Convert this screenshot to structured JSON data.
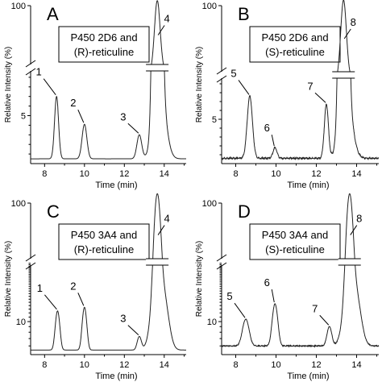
{
  "chart_data": [
    {
      "panel": "A",
      "type": "line",
      "legend": [
        "P450 2D6 and",
        "(R)-reticuline"
      ],
      "legend_italic": "R",
      "xlabel": "Time (min)",
      "ylabel": "Relative Intensity (%)",
      "scale": "linear",
      "xlim": [
        7.3,
        15.1
      ],
      "xticks": [
        8,
        10,
        12,
        14
      ],
      "lower_ylim": [
        0,
        10
      ],
      "lower_yticks": [
        5
      ],
      "upper_ylim": [
        10,
        100
      ],
      "upper_yticks": [
        100
      ],
      "baseline": 0.5,
      "peaks": [
        {
          "label": "1",
          "x": 8.6,
          "y": 7.0,
          "width": 0.1
        },
        {
          "label": "2",
          "x": 10.0,
          "y": 4.1,
          "width": 0.12
        },
        {
          "label": "3",
          "x": 12.75,
          "y": 3.0,
          "width": 0.12
        },
        {
          "label": "4",
          "x": 13.65,
          "y": 100,
          "width": 0.14,
          "shoulder": true
        }
      ],
      "noise": 0.0
    },
    {
      "panel": "B",
      "type": "line",
      "legend": [
        "P450 2D6 and",
        "(S)-reticuline"
      ],
      "legend_italic": "S",
      "xlabel": "Time (min)",
      "ylabel": "Relative Intensity (%)",
      "scale": "linear",
      "xlim": [
        7.3,
        15.1
      ],
      "xticks": [
        8,
        10,
        12,
        14
      ],
      "lower_ylim": [
        0,
        10
      ],
      "lower_yticks": [
        5
      ],
      "upper_ylim": [
        10,
        100
      ],
      "upper_yticks": [
        100
      ],
      "baseline": 0.6,
      "peaks": [
        {
          "label": "5",
          "x": 8.7,
          "y": 7.6,
          "width": 0.13
        },
        {
          "label": "6",
          "x": 9.95,
          "y": 1.8,
          "width": 0.1
        },
        {
          "label": "7",
          "x": 12.5,
          "y": 6.7,
          "width": 0.1
        },
        {
          "label": "8",
          "x": 13.35,
          "y": 100,
          "width": 0.14,
          "shoulder": true
        }
      ],
      "noise": 0.12
    },
    {
      "panel": "C",
      "type": "line",
      "legend": [
        "P450 3A4 and",
        "(R)-reticuline"
      ],
      "legend_italic": "R",
      "xlabel": "Time (min)",
      "ylabel": "Relative Intensity (%)",
      "scale": "log",
      "xlim": [
        7.3,
        15.1
      ],
      "xticks": [
        8,
        10,
        12,
        14
      ],
      "lower_ylim": [
        5,
        35
      ],
      "lower_yticks": [
        10
      ],
      "upper_ylim": [
        35,
        100
      ],
      "upper_yticks": [
        100
      ],
      "baseline": 5.5,
      "peaks": [
        {
          "label": "1",
          "x": 8.65,
          "y": 12.5,
          "width": 0.1
        },
        {
          "label": "2",
          "x": 10.0,
          "y": 13.5,
          "width": 0.1
        },
        {
          "label": "3",
          "x": 12.75,
          "y": 7.3,
          "width": 0.1
        },
        {
          "label": "4",
          "x": 13.65,
          "y": 100,
          "width": 0.13,
          "shoulder": true
        }
      ],
      "noise": 0.0
    },
    {
      "panel": "D",
      "type": "line",
      "legend": [
        "P450 3A4 and",
        "(S)-reticuline"
      ],
      "legend_italic": "S",
      "xlabel": "Time (min)",
      "ylabel": "Relative Intensity (%)",
      "scale": "log",
      "xlim": [
        7.3,
        15.1
      ],
      "xticks": [
        8,
        10,
        12,
        14
      ],
      "lower_ylim": [
        5,
        35
      ],
      "lower_yticks": [
        10
      ],
      "upper_ylim": [
        35,
        100
      ],
      "upper_yticks": [
        100
      ],
      "baseline": 6.0,
      "peaks": [
        {
          "label": "5",
          "x": 8.5,
          "y": 10.5,
          "width": 0.15
        },
        {
          "label": "6",
          "x": 9.95,
          "y": 14.5,
          "width": 0.12
        },
        {
          "label": "7",
          "x": 12.65,
          "y": 9.0,
          "width": 0.11
        },
        {
          "label": "8",
          "x": 13.65,
          "y": 100,
          "width": 0.13,
          "shoulder": true
        }
      ],
      "noise": 0.05
    }
  ]
}
